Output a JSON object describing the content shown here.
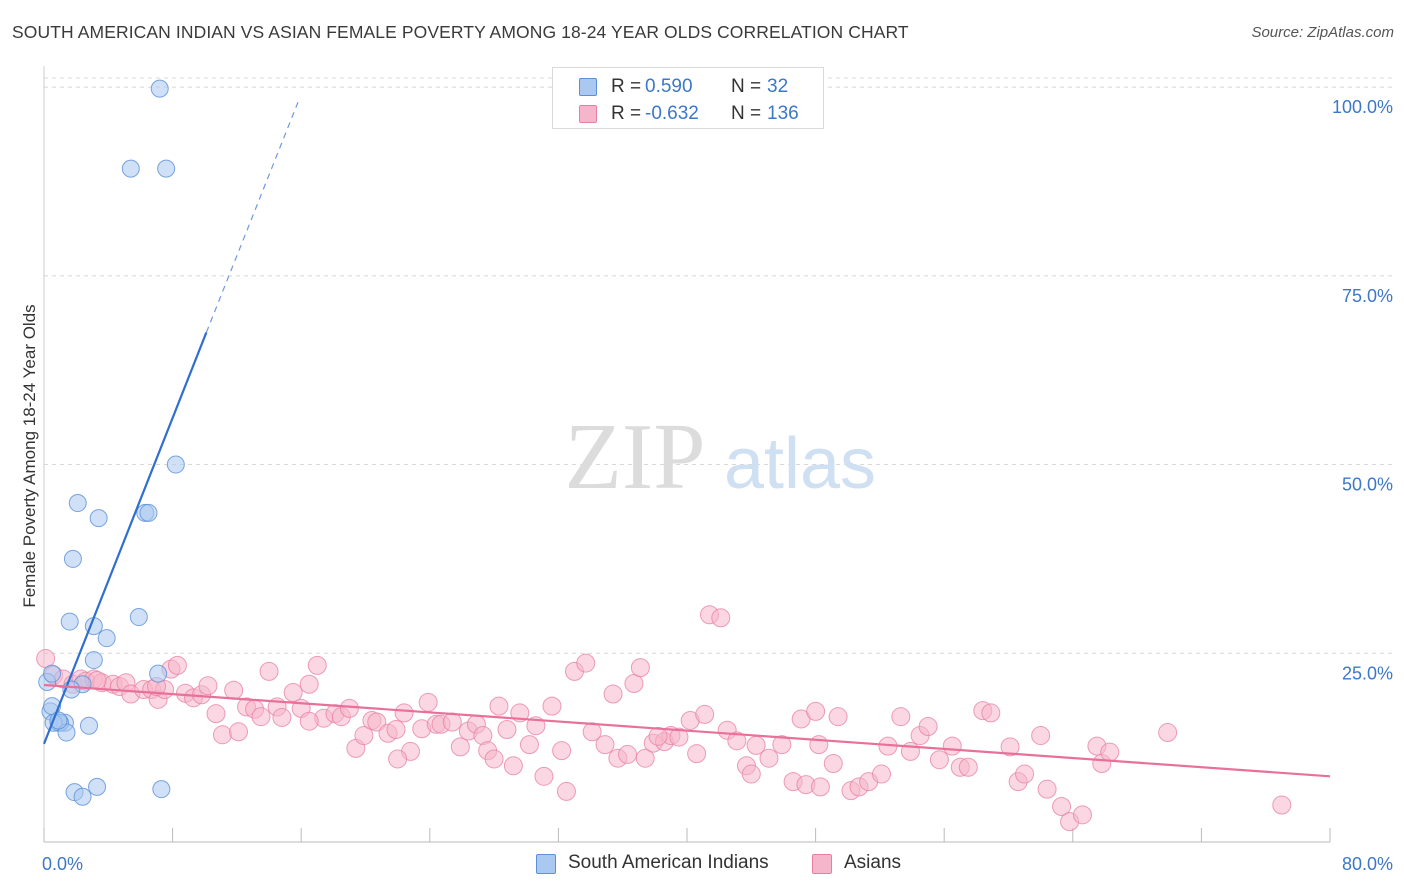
{
  "title": "SOUTH AMERICAN INDIAN VS ASIAN FEMALE POVERTY AMONG 18-24 YEAR OLDS CORRELATION CHART",
  "source": "Source: ZipAtlas.com",
  "watermark": {
    "zip": "ZIP",
    "atlas": "atlas"
  },
  "legend_top": {
    "rows": [
      {
        "r_label": "R =",
        "r_value": "0.590",
        "n_label": "N =",
        "n_value": "32"
      },
      {
        "r_label": "R =",
        "r_value": "-0.632",
        "n_label": "N =",
        "n_value": "136"
      }
    ]
  },
  "legend_bottom": {
    "items": [
      {
        "label": "South American Indians"
      },
      {
        "label": "Asians"
      }
    ]
  },
  "colors": {
    "blue_fill": "#aac8f0",
    "blue_stroke": "#5a90d8",
    "blue_line": "#2f6fd0",
    "pink_fill": "#f5b6cb",
    "pink_stroke": "#e87fa3",
    "pink_line": "#e8709a",
    "tick_text": "#3c78c8",
    "grid": "#d8d8d8"
  },
  "chart_data": {
    "type": "scatter",
    "title": "SOUTH AMERICAN INDIAN VS ASIAN FEMALE POVERTY AMONG 18-24 YEAR OLDS CORRELATION CHART",
    "xlabel": "",
    "ylabel": "Female Poverty Among 18-24 Year Olds",
    "xlim": [
      0,
      80
    ],
    "ylim": [
      0,
      102
    ],
    "x_tick_labels": [
      "0.0%",
      "80.0%"
    ],
    "y_ticks": [
      25,
      50,
      75,
      100
    ],
    "y_tick_labels": [
      "25.0%",
      "50.0%",
      "75.0%",
      "100.0%"
    ],
    "grid": true,
    "legend_position": "bottom",
    "series": [
      {
        "name": "South American Indians",
        "r": 0.59,
        "n": 32,
        "trend": {
          "x0": 0,
          "y0": 13,
          "x1": 10.1,
          "y1": 67.5,
          "dash_x1": 15.8,
          "dash_y1": 98
        },
        "points": [
          [
            7.2,
            99.8
          ],
          [
            5.4,
            89.2
          ],
          [
            7.6,
            89.2
          ],
          [
            8.2,
            50.0
          ],
          [
            2.1,
            44.9
          ],
          [
            3.4,
            42.9
          ],
          [
            6.3,
            43.6
          ],
          [
            6.5,
            43.6
          ],
          [
            1.8,
            37.5
          ],
          [
            1.6,
            29.2
          ],
          [
            3.1,
            28.6
          ],
          [
            5.9,
            29.8
          ],
          [
            3.9,
            27.0
          ],
          [
            3.1,
            24.1
          ],
          [
            7.1,
            22.3
          ],
          [
            0.2,
            21.2
          ],
          [
            0.5,
            22.3
          ],
          [
            2.4,
            20.9
          ],
          [
            1.7,
            20.2
          ],
          [
            0.4,
            17.3
          ],
          [
            0.9,
            15.8
          ],
          [
            1.3,
            15.8
          ],
          [
            1.0,
            15.8
          ],
          [
            0.6,
            15.8
          ],
          [
            2.8,
            15.4
          ],
          [
            1.4,
            14.5
          ],
          [
            0.5,
            18.0
          ],
          [
            3.3,
            7.3
          ],
          [
            1.9,
            6.6
          ],
          [
            2.4,
            6.0
          ],
          [
            7.3,
            7.0
          ],
          [
            0.9,
            16.1
          ]
        ]
      },
      {
        "name": "Asians",
        "r": -0.632,
        "n": 136,
        "trend": {
          "x0": 0,
          "y0": 20.8,
          "x1": 80,
          "y1": 8.7
        },
        "points": [
          [
            0.1,
            24.3
          ],
          [
            0.6,
            22.1
          ],
          [
            1.2,
            21.6
          ],
          [
            1.8,
            20.9
          ],
          [
            2.3,
            21.6
          ],
          [
            2.6,
            21.3
          ],
          [
            3.1,
            21.6
          ],
          [
            3.6,
            21.1
          ],
          [
            4.3,
            20.9
          ],
          [
            4.7,
            20.6
          ],
          [
            5.1,
            21.1
          ],
          [
            5.4,
            19.6
          ],
          [
            6.2,
            20.2
          ],
          [
            6.7,
            20.2
          ],
          [
            7.1,
            18.9
          ],
          [
            7.5,
            20.2
          ],
          [
            7.9,
            22.9
          ],
          [
            8.3,
            23.4
          ],
          [
            8.8,
            19.7
          ],
          [
            9.3,
            19.1
          ],
          [
            9.8,
            19.5
          ],
          [
            10.2,
            20.7
          ],
          [
            10.7,
            17.0
          ],
          [
            11.1,
            14.2
          ],
          [
            11.8,
            20.1
          ],
          [
            12.1,
            14.6
          ],
          [
            12.6,
            17.9
          ],
          [
            13.1,
            17.6
          ],
          [
            13.5,
            16.6
          ],
          [
            14.0,
            22.6
          ],
          [
            14.5,
            17.9
          ],
          [
            14.8,
            16.5
          ],
          [
            15.5,
            19.8
          ],
          [
            16.0,
            17.7
          ],
          [
            16.5,
            20.9
          ],
          [
            17.0,
            23.4
          ],
          [
            17.4,
            16.4
          ],
          [
            18.1,
            17.0
          ],
          [
            18.5,
            16.6
          ],
          [
            19.0,
            17.7
          ],
          [
            19.4,
            12.4
          ],
          [
            19.9,
            14.1
          ],
          [
            20.4,
            16.1
          ],
          [
            20.7,
            15.9
          ],
          [
            21.4,
            14.4
          ],
          [
            21.9,
            14.9
          ],
          [
            22.4,
            17.1
          ],
          [
            22.8,
            12.0
          ],
          [
            23.5,
            15.0
          ],
          [
            23.9,
            18.5
          ],
          [
            24.4,
            15.6
          ],
          [
            24.7,
            15.6
          ],
          [
            25.4,
            15.9
          ],
          [
            25.9,
            12.6
          ],
          [
            26.4,
            14.7
          ],
          [
            26.9,
            15.6
          ],
          [
            27.3,
            14.1
          ],
          [
            27.6,
            12.1
          ],
          [
            28.3,
            18.0
          ],
          [
            28.8,
            14.9
          ],
          [
            29.2,
            10.1
          ],
          [
            29.6,
            17.1
          ],
          [
            30.2,
            12.9
          ],
          [
            30.6,
            15.4
          ],
          [
            31.1,
            8.7
          ],
          [
            31.6,
            18.0
          ],
          [
            32.2,
            12.1
          ],
          [
            32.5,
            6.7
          ],
          [
            33.0,
            22.6
          ],
          [
            33.7,
            23.7
          ],
          [
            34.1,
            14.6
          ],
          [
            34.9,
            12.9
          ],
          [
            35.4,
            19.6
          ],
          [
            35.7,
            11.1
          ],
          [
            36.3,
            11.6
          ],
          [
            36.7,
            21.0
          ],
          [
            37.1,
            23.1
          ],
          [
            37.4,
            11.1
          ],
          [
            37.9,
            13.1
          ],
          [
            38.6,
            13.3
          ],
          [
            39.0,
            14.1
          ],
          [
            39.5,
            13.9
          ],
          [
            40.2,
            16.1
          ],
          [
            40.6,
            11.7
          ],
          [
            41.1,
            16.9
          ],
          [
            41.4,
            30.1
          ],
          [
            42.1,
            29.7
          ],
          [
            42.5,
            14.8
          ],
          [
            43.1,
            13.4
          ],
          [
            43.7,
            10.1
          ],
          [
            44.3,
            12.8
          ],
          [
            45.1,
            11.1
          ],
          [
            45.9,
            12.9
          ],
          [
            46.6,
            8.0
          ],
          [
            47.1,
            16.3
          ],
          [
            47.4,
            7.6
          ],
          [
            48.0,
            17.3
          ],
          [
            48.3,
            7.3
          ],
          [
            49.1,
            10.4
          ],
          [
            49.4,
            16.6
          ],
          [
            50.2,
            6.8
          ],
          [
            50.7,
            7.3
          ],
          [
            51.3,
            8.0
          ],
          [
            52.1,
            9.0
          ],
          [
            52.5,
            12.7
          ],
          [
            53.3,
            16.6
          ],
          [
            53.9,
            12.0
          ],
          [
            54.5,
            14.1
          ],
          [
            55.0,
            15.3
          ],
          [
            55.7,
            10.9
          ],
          [
            56.5,
            12.7
          ],
          [
            57.0,
            9.9
          ],
          [
            57.5,
            9.9
          ],
          [
            58.4,
            17.4
          ],
          [
            58.9,
            17.1
          ],
          [
            60.1,
            12.6
          ],
          [
            60.6,
            8.0
          ],
          [
            61.0,
            9.0
          ],
          [
            62.0,
            14.1
          ],
          [
            62.4,
            7.0
          ],
          [
            63.3,
            4.7
          ],
          [
            63.8,
            2.7
          ],
          [
            64.6,
            3.6
          ],
          [
            65.5,
            12.7
          ],
          [
            65.8,
            10.4
          ],
          [
            66.3,
            11.9
          ],
          [
            69.9,
            14.5
          ],
          [
            77.0,
            4.9
          ],
          [
            48.2,
            12.9
          ],
          [
            44.0,
            9.0
          ],
          [
            38.2,
            14.0
          ],
          [
            28.0,
            11.0
          ],
          [
            22.0,
            11.0
          ],
          [
            16.5,
            16.0
          ],
          [
            3.3,
            21.4
          ],
          [
            7.0,
            20.6
          ]
        ]
      }
    ]
  }
}
